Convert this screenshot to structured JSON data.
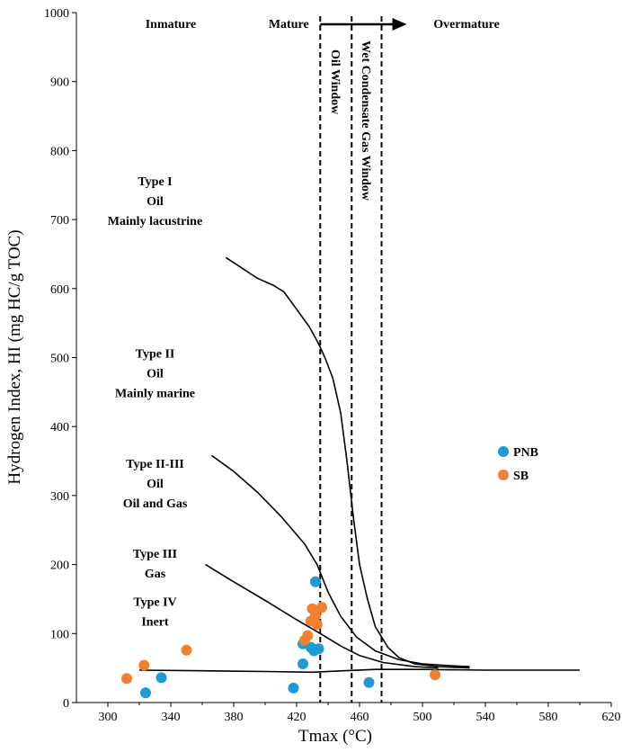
{
  "chart_data": {
    "type": "scatter",
    "xlabel": "Tmax (°C)",
    "ylabel": "Hydrogen Index, HI (mg HC/g TOC)",
    "xlim": [
      280,
      620
    ],
    "ylim": [
      0,
      1000
    ],
    "x_ticks": [
      300,
      340,
      380,
      420,
      460,
      500,
      540,
      580,
      620
    ],
    "y_ticks": [
      0,
      100,
      200,
      300,
      400,
      500,
      600,
      700,
      800,
      900,
      1000
    ],
    "legend_position": "right",
    "series": [
      {
        "name": "PNB",
        "color": "#1f9ad6",
        "points": [
          [
            324,
            14
          ],
          [
            334,
            36
          ],
          [
            418,
            21
          ],
          [
            424,
            85
          ],
          [
            424,
            56
          ],
          [
            429,
            80
          ],
          [
            431,
            75
          ],
          [
            432,
            175
          ],
          [
            434,
            78
          ],
          [
            466,
            29
          ]
        ]
      },
      {
        "name": "SB",
        "color": "#f28030",
        "points": [
          [
            312,
            35
          ],
          [
            323,
            54
          ],
          [
            350,
            76
          ],
          [
            425,
            90
          ],
          [
            427,
            97
          ],
          [
            429,
            118
          ],
          [
            430,
            136
          ],
          [
            432,
            126
          ],
          [
            433,
            113
          ],
          [
            436,
            138
          ],
          [
            508,
            40
          ]
        ]
      }
    ],
    "maturity_zones": {
      "labels": [
        "Inmature",
        "Mature",
        "Overmature"
      ],
      "boundaries": [
        435,
        455,
        474
      ],
      "window_labels": [
        "Oil Window",
        "Wet Condensate Gas Window"
      ]
    },
    "kerogen_types": [
      {
        "lines": [
          "Type I",
          "Oil",
          "Mainly lacustrine"
        ],
        "y": 750
      },
      {
        "lines": [
          "Type II",
          "Oil",
          "Mainly marine"
        ],
        "y": 500
      },
      {
        "lines": [
          "Type II-III",
          "Oil",
          "Oil and Gas"
        ],
        "y": 340
      },
      {
        "lines": [
          "Type III",
          "Gas"
        ],
        "y": 210
      },
      {
        "lines": [
          "Type IV",
          "Inert"
        ],
        "y": 140
      }
    ],
    "curves": [
      {
        "points": [
          [
            375,
            645
          ],
          [
            385,
            630
          ],
          [
            395,
            615
          ],
          [
            405,
            605
          ],
          [
            412,
            595
          ],
          [
            420,
            570
          ],
          [
            428,
            545
          ],
          [
            434,
            520
          ],
          [
            438,
            500
          ],
          [
            443,
            470
          ],
          [
            448,
            420
          ],
          [
            452,
            350
          ],
          [
            456,
            270
          ],
          [
            460,
            200
          ],
          [
            465,
            150
          ],
          [
            470,
            110
          ],
          [
            478,
            80
          ],
          [
            485,
            65
          ],
          [
            495,
            56
          ],
          [
            510,
            52
          ],
          [
            530,
            50
          ]
        ]
      },
      {
        "points": [
          [
            366,
            358
          ],
          [
            380,
            335
          ],
          [
            395,
            305
          ],
          [
            410,
            270
          ],
          [
            425,
            230
          ],
          [
            433,
            200
          ],
          [
            440,
            160
          ],
          [
            448,
            125
          ],
          [
            458,
            95
          ],
          [
            470,
            75
          ],
          [
            485,
            62
          ],
          [
            500,
            56
          ],
          [
            520,
            53
          ],
          [
            530,
            52
          ]
        ]
      },
      {
        "points": [
          [
            362,
            200
          ],
          [
            380,
            175
          ],
          [
            400,
            148
          ],
          [
            420,
            120
          ],
          [
            435,
            100
          ],
          [
            448,
            82
          ],
          [
            460,
            68
          ],
          [
            475,
            58
          ],
          [
            495,
            52
          ],
          [
            510,
            50
          ]
        ]
      },
      {
        "points": [
          [
            320,
            47
          ],
          [
            360,
            46
          ],
          [
            400,
            45
          ],
          [
            430,
            44
          ],
          [
            450,
            46
          ],
          [
            470,
            48
          ],
          [
            500,
            48
          ],
          [
            540,
            47
          ],
          [
            600,
            47
          ]
        ]
      }
    ]
  }
}
